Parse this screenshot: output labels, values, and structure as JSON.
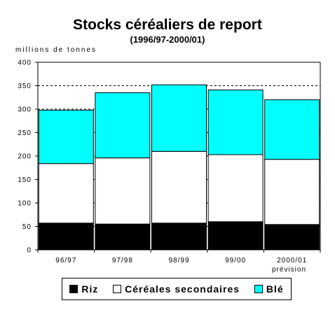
{
  "chart_data": {
    "type": "bar",
    "stacked": true,
    "title": "Stocks céréaliers de report",
    "subtitle": "(1996/97-2000/01)",
    "ylabel": "millions de tonnes",
    "xlabel": "",
    "categories": [
      "96/97",
      "97/98",
      "98/99",
      "99/00",
      "2000/01"
    ],
    "category_note": "prévision",
    "ylim": [
      0,
      400
    ],
    "yticks": [
      0,
      50,
      100,
      150,
      200,
      250,
      300,
      350,
      400
    ],
    "grid": "dashed horizontal",
    "legend_position": "bottom",
    "series": [
      {
        "name": "Riz",
        "color": "#000000",
        "values": [
          57,
          55,
          57,
          60,
          54
        ]
      },
      {
        "name": "Céréales secondaires",
        "color": "#ffffff",
        "values": [
          127,
          141,
          153,
          143,
          139
        ]
      },
      {
        "name": "Blé",
        "color": "#00ffff",
        "values": [
          114,
          139,
          142,
          138,
          127
        ]
      }
    ]
  }
}
